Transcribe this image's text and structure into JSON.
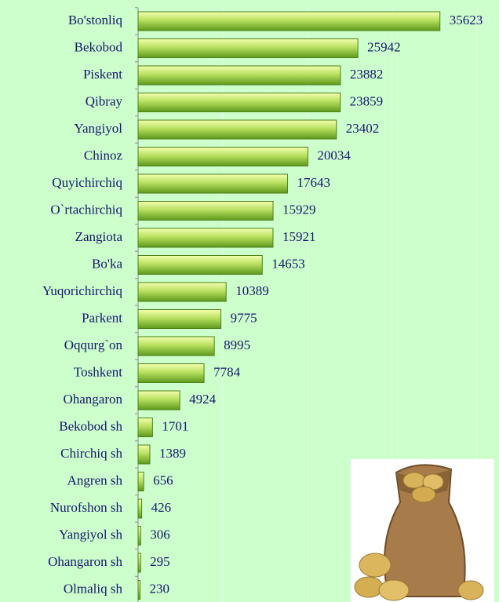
{
  "chart_data": {
    "type": "bar",
    "orientation": "horizontal",
    "categories": [
      "Bo'stonliq",
      "Bekobod",
      "Piskent",
      "Qibray",
      "Yangiyol",
      "Chinoz",
      "Quyichirchiq",
      "O`rtachirchiq",
      "Zangiota",
      "Bo'ka",
      "Yuqorichirchiq",
      "Parkent",
      "Oqqurg`on",
      "Toshkent",
      "Ohangaron",
      "Bekobod sh",
      "Chirchiq sh",
      "Angren sh",
      "Nurofshon sh",
      "Yangiyol sh",
      "Ohangaron sh",
      "Olmaliq sh"
    ],
    "values": [
      35623,
      25942,
      23882,
      23859,
      23402,
      20034,
      17643,
      15929,
      15921,
      14653,
      10389,
      9775,
      8995,
      7784,
      4924,
      1701,
      1389,
      656,
      426,
      306,
      295,
      230
    ],
    "color": "#7fcc33",
    "xlim": [
      0,
      40000
    ],
    "xticks": [
      0,
      10000,
      20000,
      30000,
      40000
    ],
    "grid": true
  }
}
